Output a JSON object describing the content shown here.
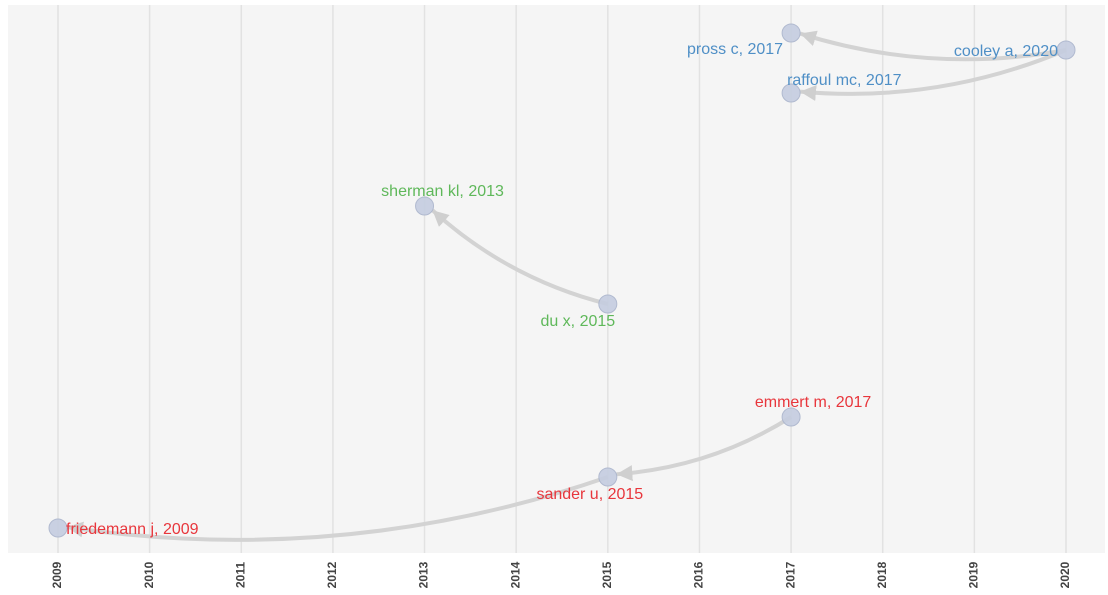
{
  "chart_data": {
    "type": "network",
    "xlim": [
      2009,
      2020
    ],
    "xticks": [
      2009,
      2010,
      2011,
      2012,
      2013,
      2014,
      2015,
      2016,
      2017,
      2018,
      2019,
      2020
    ],
    "grid": true,
    "nodes": [
      {
        "label": "pross c, 2017",
        "x": 2017,
        "color": "#4f8fc6"
      },
      {
        "label": "cooley a, 2020",
        "x": 2020,
        "color": "#4f8fc6"
      },
      {
        "label": "raffoul mc, 2017",
        "x": 2017,
        "color": "#4f8fc6"
      },
      {
        "label": "sherman kl, 2013",
        "x": 2013,
        "color": "#5fb85a"
      },
      {
        "label": "du x, 2015",
        "x": 2015,
        "color": "#5fb85a"
      },
      {
        "label": "emmert m, 2017",
        "x": 2017,
        "color": "#e8363c"
      },
      {
        "label": "sander u, 2015",
        "x": 2015,
        "color": "#e8363c"
      },
      {
        "label": "friedemann j, 2009",
        "x": 2009,
        "color": "#e8363c"
      }
    ],
    "edges": [
      {
        "from": 1,
        "to": 0
      },
      {
        "from": 1,
        "to": 2
      },
      {
        "from": 4,
        "to": 3
      },
      {
        "from": 5,
        "to": 6
      },
      {
        "from": 6,
        "to": 7
      }
    ]
  }
}
